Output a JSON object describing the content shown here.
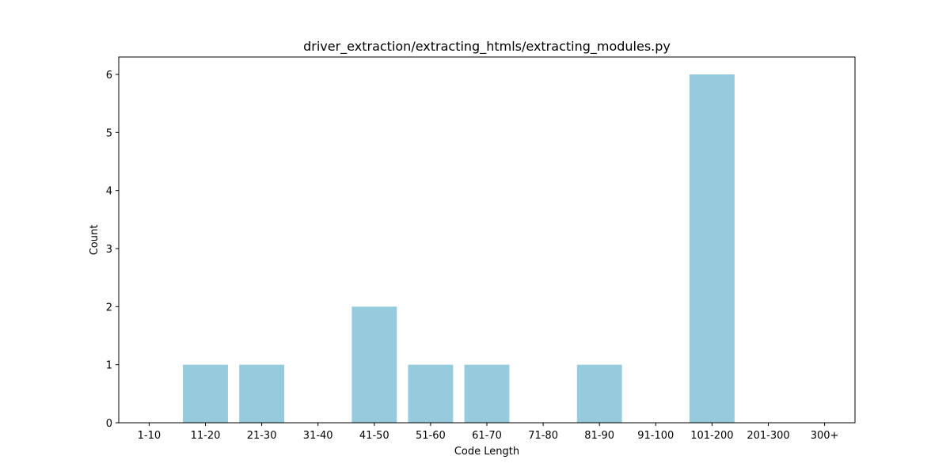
{
  "chart_data": {
    "type": "bar",
    "title": "driver_extraction/extracting_htmls/extracting_modules.py",
    "xlabel": "Code Length",
    "ylabel": "Count",
    "categories": [
      "1-10",
      "11-20",
      "21-30",
      "31-40",
      "41-50",
      "51-60",
      "61-70",
      "71-80",
      "81-90",
      "91-100",
      "101-200",
      "201-300",
      "300+"
    ],
    "values": [
      0,
      1,
      1,
      0,
      2,
      1,
      1,
      0,
      1,
      0,
      6,
      0,
      0
    ],
    "ylim": [
      0,
      6.3
    ],
    "yticks": [
      0,
      1,
      2,
      3,
      4,
      5,
      6
    ],
    "bar_color": "#96cadd",
    "grid": false,
    "legend": "none"
  }
}
